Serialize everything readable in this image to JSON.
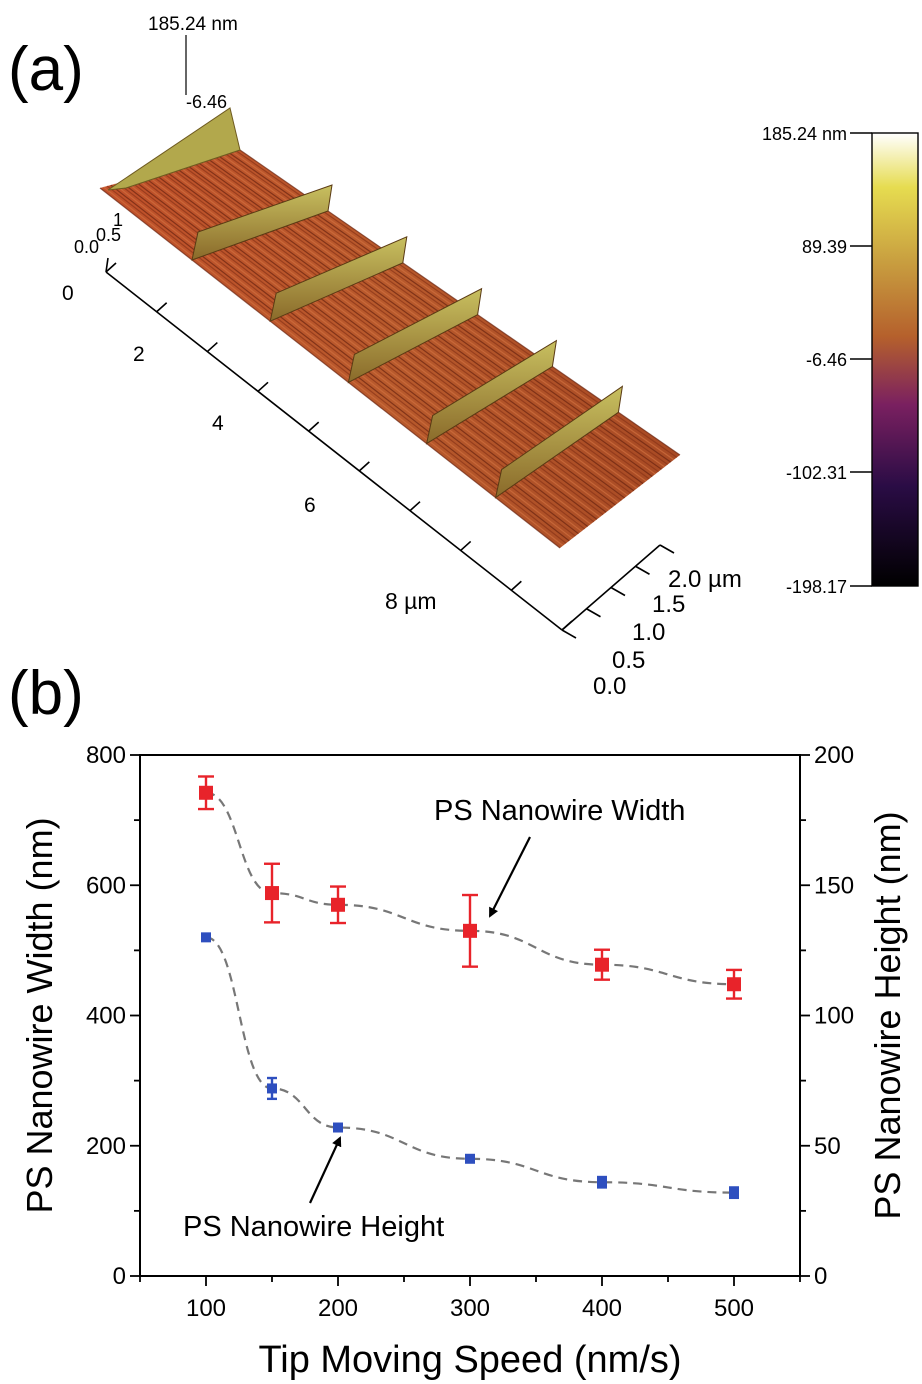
{
  "panel_a": {
    "label": "(a)",
    "peak_label": "185.24 nm",
    "peak_sublabel": "-6.46",
    "z_ticks_small": [
      "0.0",
      "0.5",
      "1"
    ],
    "x_ticks": [
      "0",
      "2",
      "4",
      "6",
      "8 µm"
    ],
    "y_ticks": [
      "0.0",
      "0.5",
      "1.0",
      "1.5",
      "2.0 µm"
    ],
    "colorbar": {
      "ticks": [
        "185.24 nm",
        "89.39",
        "-6.46",
        "-102.31",
        "-198.17"
      ],
      "colors": [
        "#ffffff",
        "#e8d84a",
        "#b5722c",
        "#5a1a5e",
        "#000000"
      ]
    }
  },
  "panel_b": {
    "label": "(b)",
    "xlabel": "Tip Moving Speed (nm/s)",
    "ylabel_left": "PS Nanowire Width (nm)",
    "ylabel_right": "PS Nanowire Height (nm)",
    "annotations": {
      "width": "PS Nanowire Width",
      "height": "PS Nanowire Height"
    }
  },
  "chart_data": {
    "type": "scatter",
    "x": [
      100,
      150,
      200,
      300,
      400,
      500
    ],
    "xlabel": "Tip Moving Speed (nm/s)",
    "xlim": [
      50,
      550
    ],
    "x_ticks": [
      100,
      200,
      300,
      400,
      500
    ],
    "ylabel": "PS Nanowire Width (nm)",
    "ylim": [
      0,
      800
    ],
    "y_ticks": [
      0,
      200,
      400,
      600,
      800
    ],
    "y2label": "PS Nanowire Height (nm)",
    "y2lim": [
      0,
      200
    ],
    "y2_ticks": [
      0,
      50,
      100,
      150,
      200
    ],
    "series": [
      {
        "name": "PS Nanowire Width",
        "axis": "left",
        "color": "#e8232a",
        "values": [
          742,
          588,
          570,
          530,
          478,
          448
        ],
        "errors": [
          25,
          45,
          28,
          55,
          23,
          22
        ]
      },
      {
        "name": "PS Nanowire Height",
        "axis": "right",
        "color": "#2e4fbf",
        "values": [
          130,
          72,
          57,
          45,
          36,
          32
        ],
        "errors": [
          0,
          4,
          1,
          1,
          2,
          2
        ]
      }
    ]
  }
}
